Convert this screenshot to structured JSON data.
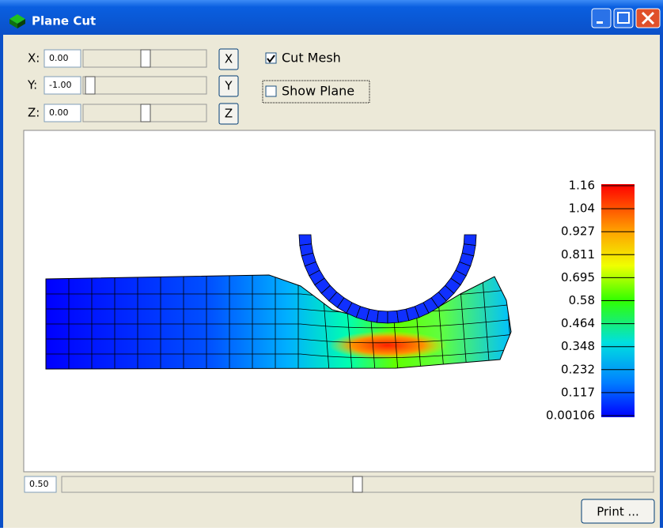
{
  "window": {
    "title": "Plane Cut"
  },
  "axes_controls": [
    {
      "label": "X:",
      "value": "0.00",
      "button": "X"
    },
    {
      "label": "Y:",
      "value": "-1.00",
      "button": "Y"
    },
    {
      "label": "Z:",
      "value": "0.00",
      "button": "Z"
    }
  ],
  "checkboxes": [
    {
      "label": "Cut Mesh",
      "checked": true
    },
    {
      "label": "Show Plane",
      "checked": false
    }
  ],
  "legend": {
    "labels": [
      "1.16",
      "1.04",
      "0.927",
      "0.811",
      "0.695",
      "0.58",
      "0.464",
      "0.348",
      "0.232",
      "0.117",
      "0.00106"
    ]
  },
  "bottom": {
    "value": "0.50",
    "button": "Print ..."
  }
}
